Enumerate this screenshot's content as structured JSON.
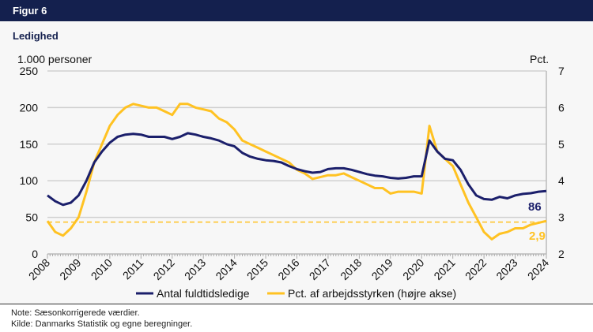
{
  "header": {
    "figure": "Figur 6",
    "title": "Ledighed"
  },
  "notes": {
    "note": "Note:  Sæsonkorrigerede værdier.",
    "source": "Kilde:  Danmarks Statistik og egne beregninger."
  },
  "chart_data": {
    "type": "line",
    "title": "Ledighed",
    "ylabel": "1.000 personer",
    "y2label": "Pct.",
    "ylim": [
      0,
      250
    ],
    "y2lim": [
      2,
      7
    ],
    "yticks": [
      "0",
      "50",
      "100",
      "150",
      "200",
      "250"
    ],
    "y2ticks": [
      "2",
      "3",
      "4",
      "5",
      "6",
      "7"
    ],
    "xticks": [
      "2008",
      "2009",
      "2010",
      "2011",
      "2012",
      "2013",
      "2014",
      "2015",
      "2016",
      "2017",
      "2018",
      "2019",
      "2020",
      "2021",
      "2022",
      "2023",
      "2024"
    ],
    "x": [
      2008.0,
      2008.25,
      2008.5,
      2008.75,
      2009.0,
      2009.25,
      2009.5,
      2009.75,
      2010.0,
      2010.25,
      2010.5,
      2010.75,
      2011.0,
      2011.25,
      2011.5,
      2011.75,
      2012.0,
      2012.25,
      2012.5,
      2012.75,
      2013.0,
      2013.25,
      2013.5,
      2013.75,
      2014.0,
      2014.25,
      2014.5,
      2014.75,
      2015.0,
      2015.25,
      2015.5,
      2015.75,
      2016.0,
      2016.25,
      2016.5,
      2016.75,
      2017.0,
      2017.25,
      2017.5,
      2017.75,
      2018.0,
      2018.25,
      2018.5,
      2018.75,
      2019.0,
      2019.25,
      2019.5,
      2019.75,
      2020.0,
      2020.25,
      2020.5,
      2020.75,
      2021.0,
      2021.25,
      2021.5,
      2021.75,
      2022.0,
      2022.25,
      2022.5,
      2022.75,
      2023.0,
      2023.25,
      2023.5,
      2023.75,
      2024.0
    ],
    "series": [
      {
        "name": "Antal fuldtidsledige",
        "axis": "left",
        "color": "#1b1f6b",
        "end_label": "86",
        "values": [
          80,
          72,
          67,
          70,
          80,
          100,
          125,
          140,
          152,
          160,
          163,
          164,
          163,
          160,
          160,
          160,
          157,
          160,
          165,
          163,
          160,
          158,
          155,
          150,
          147,
          138,
          133,
          130,
          128,
          127,
          125,
          120,
          116,
          113,
          111,
          112,
          116,
          117,
          117,
          115,
          112,
          109,
          107,
          106,
          104,
          103,
          104,
          106,
          106,
          155,
          140,
          130,
          128,
          115,
          95,
          80,
          75,
          74,
          78,
          76,
          80,
          82,
          83,
          85,
          86
        ]
      },
      {
        "name": "Pct. af arbejdsstyrken (højre akse)",
        "axis": "right",
        "color": "#ffc222",
        "end_label": "2,9",
        "values": [
          2.9,
          2.6,
          2.5,
          2.7,
          3.0,
          3.7,
          4.5,
          5.0,
          5.5,
          5.8,
          6.0,
          6.1,
          6.05,
          6.0,
          6.0,
          5.9,
          5.8,
          6.1,
          6.1,
          6.0,
          5.95,
          5.9,
          5.7,
          5.6,
          5.4,
          5.1,
          5.0,
          4.9,
          4.8,
          4.7,
          4.6,
          4.5,
          4.3,
          4.2,
          4.05,
          4.1,
          4.15,
          4.15,
          4.2,
          4.1,
          4.0,
          3.9,
          3.8,
          3.8,
          3.65,
          3.7,
          3.7,
          3.7,
          3.65,
          5.5,
          4.8,
          4.6,
          4.4,
          3.9,
          3.4,
          3.0,
          2.6,
          2.4,
          2.55,
          2.6,
          2.7,
          2.7,
          2.8,
          2.85,
          2.9
        ]
      }
    ],
    "reference_line": {
      "axis": "right",
      "value": 2.87,
      "color": "#ffc222",
      "style": "dashed"
    },
    "legend": "bottom",
    "grid": true
  }
}
